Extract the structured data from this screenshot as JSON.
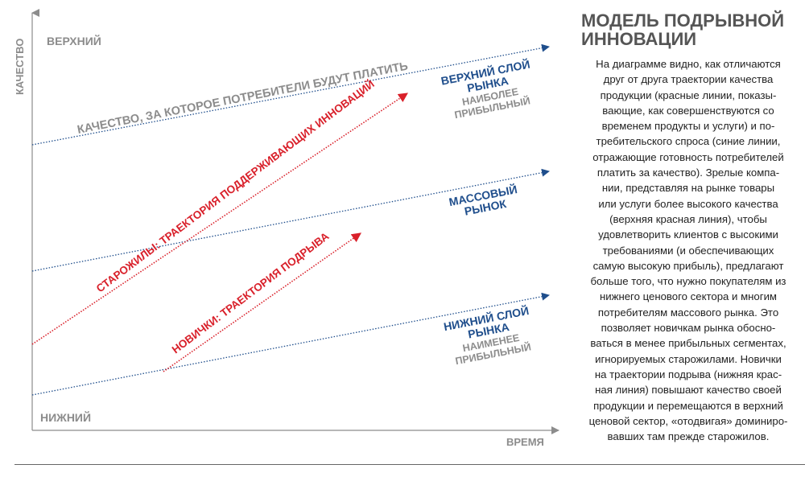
{
  "diagram": {
    "axis_y_label": "КАЧЕСТВО",
    "axis_x_label": "ВРЕМЯ",
    "level_top": "ВЕРХНИЙ",
    "level_bottom": "НИЖНИЙ",
    "demand_line_top_label": "КАЧЕСТВО, ЗА КОТОРОЕ ПОТРЕБИТЕЛИ БУДУТ ПЛАТИТЬ",
    "incumbent_trajectory_label": "СТАРОЖИЛЫ: ТРАЕКТОРИЯ ПОДДЕРЖИВАЮЩИХ ИННОВАЦИЙ",
    "entrant_trajectory_label": "НОВИЧКИ: ТРАЕКТОРИЯ ПОДРЫВА",
    "upper_tier": {
      "title_line1": "ВЕРХНИЙ СЛОЙ",
      "title_line2": "РЫНКА",
      "note_line1": "НАИБОЛЕЕ",
      "note_line2": "ПРИБЫЛЬНЫЙ"
    },
    "mass_tier": {
      "title_line1": "МАССОВЫЙ",
      "title_line2": "РЫНОК"
    },
    "lower_tier": {
      "title_line1": "НИЖНИЙ СЛОЙ",
      "title_line2": "РЫНКА",
      "note_line1": "НАИМЕНЕЕ",
      "note_line2": "ПРИБЫЛЬНЫЙ"
    },
    "colors": {
      "demand": "#1f4e8c",
      "trajectory": "#d9202a",
      "axis": "#8c8c8c",
      "gray_text": "#8c8c8c"
    }
  },
  "sidebar": {
    "title_line1": "МОДЕЛЬ ПОДРЫВНОЙ",
    "title_line2": "ИННОВАЦИИ",
    "lines": [
      "На диаграмме видно, как отличаются",
      "друг от друга траектории качества",
      "продукции (красные линии, показы-",
      "вающие, как совершенствуются со",
      "временем продукты и услуги) и по-",
      "требительского спроса (синие линии,",
      "отражающие готовность потребителей",
      "платить за качество). Зрелые компа-",
      "нии, представляя на рынке товары",
      "или услуги более высокого качества",
      "(верхняя красная линия), чтобы",
      "удовлетворить клиентов с высокими",
      "требованиями (и обеспечивающих",
      "самую высокую прибыль), предлагают",
      "больше того, что нужно покупателям из",
      "нижнего ценового сектора и многим",
      "потребителям массового рынка. Это",
      "позволяет новичкам рынка обосно-",
      "ваться в менее прибыльных сегментах,",
      "игнорируемых старожилами. Новички",
      "на траектории подрыва (нижняя крас-",
      "ная линия) повышают качество своей",
      "продукции и перемещаются в верхний",
      "ценовой сектор, «отодвигая» доминиро-",
      "вавших там прежде старожилов."
    ]
  }
}
